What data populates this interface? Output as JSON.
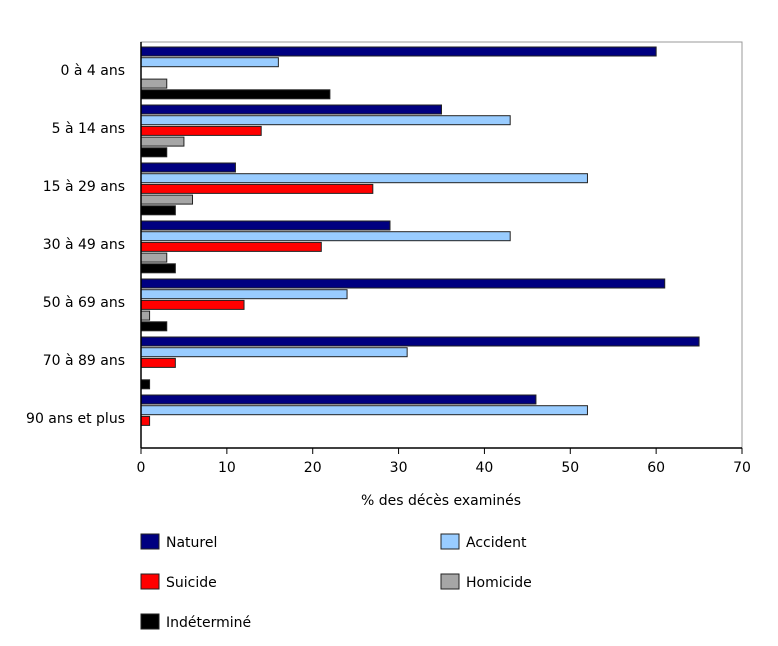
{
  "chart_data": {
    "type": "bar",
    "orientation": "horizontal",
    "categories": [
      "0 à 4 ans",
      "5 à 14 ans",
      "15 à 29 ans",
      "30 à 49 ans",
      "50 à 69 ans",
      "70 à 89 ans",
      "90 ans et plus"
    ],
    "series": [
      {
        "name": "Naturel",
        "color": "#000080",
        "values": [
          60,
          35,
          11,
          29,
          61,
          65,
          46
        ]
      },
      {
        "name": "Accident",
        "color": "#99ccff",
        "values": [
          16,
          43,
          52,
          43,
          24,
          31,
          52
        ]
      },
      {
        "name": "Suicide",
        "color": "#ff0000",
        "values": [
          0,
          14,
          27,
          21,
          12,
          4,
          1
        ]
      },
      {
        "name": "Homicide",
        "color": "#a6a6a6",
        "values": [
          3,
          5,
          6,
          3,
          1,
          0,
          0
        ]
      },
      {
        "name": "Indéterminé",
        "color": "#000000",
        "values": [
          22,
          3,
          4,
          4,
          3,
          1,
          0
        ]
      }
    ],
    "xlabel": "% des décès examinés",
    "xlim": [
      0,
      70
    ],
    "xticks": [
      "0",
      "10",
      "20",
      "30",
      "40",
      "50",
      "60",
      "70"
    ],
    "grid": false,
    "legend_position": "bottom"
  }
}
